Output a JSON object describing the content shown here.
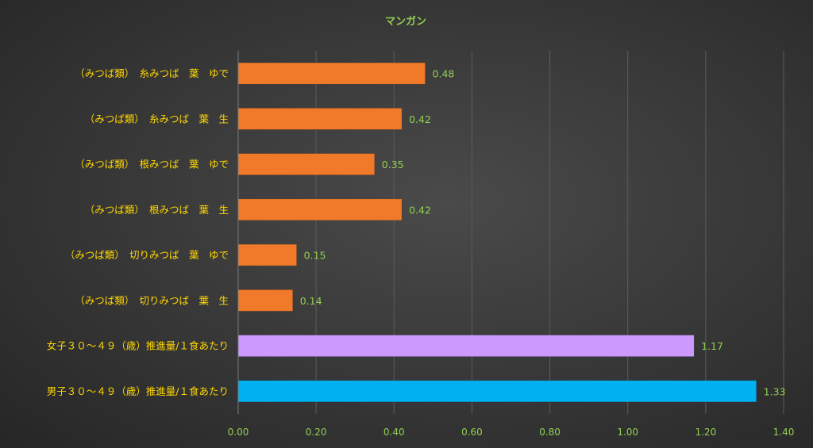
{
  "chart_data": {
    "type": "bar",
    "orientation": "horizontal",
    "title": "マンガン",
    "categories": [
      "（みつば類）　糸みつば　葉　ゆで",
      "（みつば類）　糸みつば　葉　生",
      "（みつば類）　根みつば　葉　ゆで",
      "（みつば類）　根みつば　葉　生",
      "（みつば類）　切りみつば　葉　ゆで",
      "（みつば類）　切りみつば　葉　生",
      "女子３０～４９（歳）推進量/１食あたり",
      "男子３０～４９（歳）推進量/１食あたり"
    ],
    "values": [
      0.48,
      0.42,
      0.35,
      0.42,
      0.15,
      0.14,
      1.17,
      1.33
    ],
    "data_labels": [
      "0.48",
      "0.42",
      "0.35",
      "0.42",
      "0.15",
      "0.14",
      "1.17",
      "1.33"
    ],
    "bar_colors": [
      "#f07a2a",
      "#f07a2a",
      "#f07a2a",
      "#f07a2a",
      "#f07a2a",
      "#f07a2a",
      "#cc99ff",
      "#00b0f0"
    ],
    "xlim": [
      0,
      1.4
    ],
    "xticks": [
      "0.00",
      "0.20",
      "0.40",
      "0.60",
      "0.80",
      "1.00",
      "1.20",
      "1.40"
    ],
    "xlabel": "",
    "ylabel": "",
    "grid": true,
    "legend": "none"
  },
  "colors": {
    "title": "#92d050",
    "category_text": "#ffd700",
    "tick_text": "#92d050",
    "data_label_text": "#92d050",
    "grid": "#5c5c5c"
  }
}
